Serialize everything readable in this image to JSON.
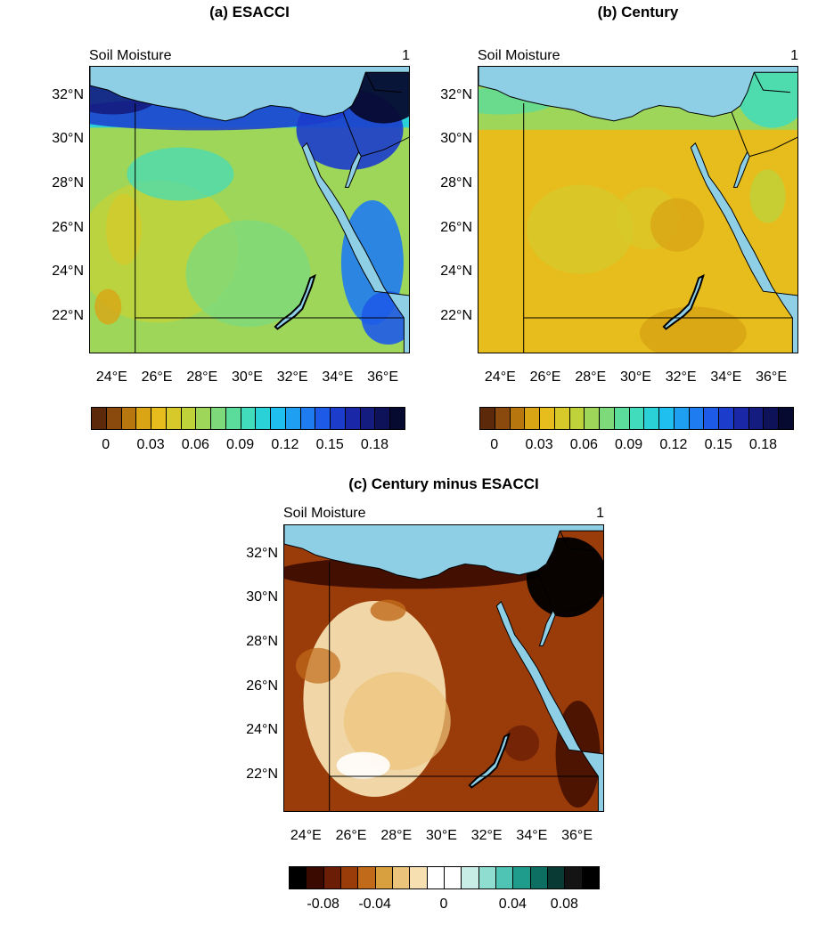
{
  "panels": [
    {
      "id": "a",
      "title": "(a) ESACCI",
      "left_text": "Soil Moisture",
      "right_text": "1",
      "lat_labels": [
        "32°N",
        "30°N",
        "28°N",
        "26°N",
        "24°N",
        "22°N"
      ],
      "lon_labels": [
        "24°E",
        "26°E",
        "28°E",
        "30°E",
        "32°E",
        "34°E",
        "36°E"
      ],
      "colorbar_labels": [
        "0",
        "0.03",
        "0.06",
        "0.09",
        "0.12",
        "0.15",
        "0.18"
      ],
      "colorbar_colors": [
        "#5c2a0a",
        "#8a4a0e",
        "#b8760f",
        "#d9a515",
        "#e6bd1c",
        "#d7c92a",
        "#bfd23a",
        "#9ed65a",
        "#7ed97a",
        "#5cdc9a",
        "#40dcbc",
        "#2ad2d8",
        "#1fbff0",
        "#1e9ff2",
        "#1e7cf0",
        "#1e5ae8",
        "#1c3ccc",
        "#1a28a8",
        "#141c80",
        "#0e1258",
        "#070a30"
      ]
    },
    {
      "id": "b",
      "title": "(b) Century",
      "left_text": "Soil Moisture",
      "right_text": "1",
      "lat_labels": [
        "32°N",
        "30°N",
        "28°N",
        "26°N",
        "24°N",
        "22°N"
      ],
      "lon_labels": [
        "24°E",
        "26°E",
        "28°E",
        "30°E",
        "32°E",
        "34°E",
        "36°E"
      ],
      "colorbar_labels": [
        "0",
        "0.03",
        "0.06",
        "0.09",
        "0.12",
        "0.15",
        "0.18"
      ],
      "colorbar_colors": [
        "#5c2a0a",
        "#8a4a0e",
        "#b8760f",
        "#d9a515",
        "#e6bd1c",
        "#d7c92a",
        "#bfd23a",
        "#9ed65a",
        "#7ed97a",
        "#5cdc9a",
        "#40dcbc",
        "#2ad2d8",
        "#1fbff0",
        "#1e9ff2",
        "#1e7cf0",
        "#1e5ae8",
        "#1c3ccc",
        "#1a28a8",
        "#141c80",
        "#0e1258",
        "#070a30"
      ]
    },
    {
      "id": "c",
      "title": "(c) Century minus ESACCI",
      "left_text": "Soil Moisture",
      "right_text": "1",
      "lat_labels": [
        "32°N",
        "30°N",
        "28°N",
        "26°N",
        "24°N",
        "22°N"
      ],
      "lon_labels": [
        "24°E",
        "26°E",
        "28°E",
        "30°E",
        "32°E",
        "34°E",
        "36°E"
      ],
      "colorbar_labels": [
        "-0.08",
        "-0.04",
        "0",
        "0.04",
        "0.08"
      ],
      "colorbar_colors": [
        "#000000",
        "#3a0a00",
        "#6b1e05",
        "#9a3c0a",
        "#c06a1a",
        "#d9a040",
        "#ecc37a",
        "#f6dfb0",
        "#ffffff",
        "#ffffff",
        "#c8ede6",
        "#8fdcd0",
        "#4fc4b4",
        "#1f9c8c",
        "#0d6e62",
        "#0a3a34",
        "#141414",
        "#000000"
      ]
    }
  ],
  "colors": {
    "sea": "#8ecfe6",
    "border": "#000000",
    "ocean_edge": "#ffffff"
  }
}
